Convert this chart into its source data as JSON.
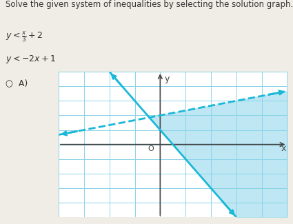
{
  "title_text": "Solve the given system of inequalities by selecting the solution graph.",
  "line1_slope": 0.3333,
  "line1_intercept": 2,
  "line1_style": "dashed",
  "line2_slope": -2,
  "line2_intercept": 1,
  "line2_style": "solid",
  "line_color": "#1ab8d8",
  "shade_color": "#a8dff0",
  "shade_alpha": 0.75,
  "xlim": [
    -4,
    5
  ],
  "ylim": [
    -5,
    5
  ],
  "grid_color": "#8ad4e8",
  "axis_color": "#444444",
  "bg_color": "#f0ece6",
  "graph_bg": "#ffffff",
  "text_color": "#333333",
  "font_size_title": 8.5,
  "font_size_label": 9
}
